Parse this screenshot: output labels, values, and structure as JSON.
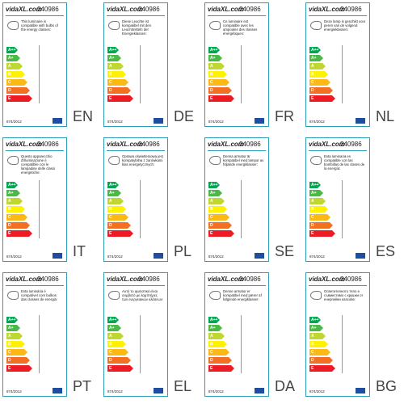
{
  "brand": "vidaXL.com",
  "code": "240986",
  "regulation": "874/2012",
  "classes": [
    "A++",
    "A+",
    "A",
    "B",
    "C",
    "D",
    "E"
  ],
  "labels": [
    {
      "lang": "EN",
      "text": "This luminaire is compatible with bulbs of the energy classes:"
    },
    {
      "lang": "DE",
      "text": "Diese Leuchte ist kompatibel mit den Leuchtmitteln der Energieklassen:"
    },
    {
      "lang": "FR",
      "text": "Ce luminaire est compatible avec les ampoules des classes énergétiques:"
    },
    {
      "lang": "NL",
      "text": "Deze lamp is geschikt voor peren van de volgend energieklassen:"
    },
    {
      "lang": "IT",
      "text": "Questo apparecchio d'illuminazione è compatibile con le lampadine delle classi energetiche:"
    },
    {
      "lang": "PL",
      "text": "Oprawa oświetleniowa jest kompatybilna z żarówkami klas energetycznych:"
    },
    {
      "lang": "SE",
      "text": "Denna armatur är kompatibel med lampor av följande energiklasser:"
    },
    {
      "lang": "ES",
      "text": "Esta luminaria es compatible con las bombillas de las clases de la energía:"
    },
    {
      "lang": "PT",
      "text": "Esta luminária é compatível com bulbos das classes de energia:"
    },
    {
      "lang": "EL",
      "text": "Αυτό το φωτιστικό είναι συμβατό με λαμπτήρες των ενεργειακών κλάσεων:"
    },
    {
      "lang": "DA",
      "text": "Denne armatur er kompatibel med pærer af følgende energiklasser:"
    },
    {
      "lang": "BG",
      "text": "Осветителното тяло е съвместимо с крушки от енергийни класове:"
    }
  ]
}
